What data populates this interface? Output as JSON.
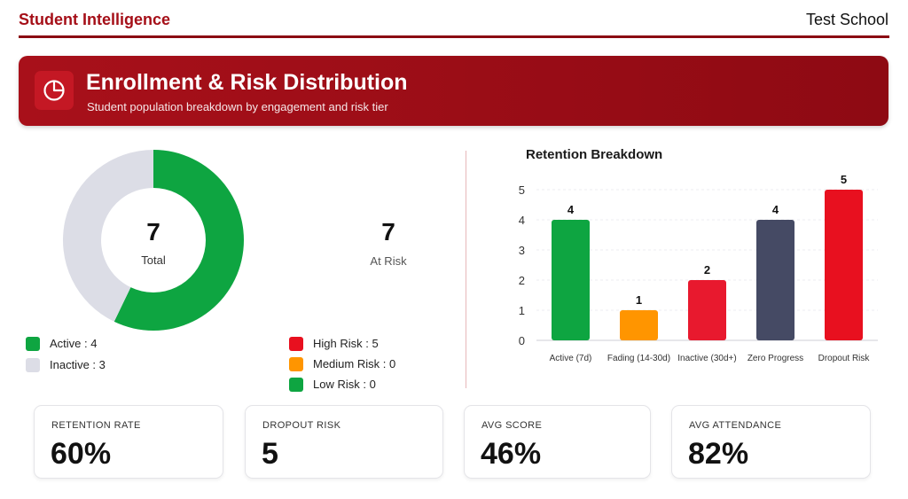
{
  "header": {
    "brand": "Student Intelligence",
    "school": "Test School"
  },
  "hero": {
    "icon": "pie-chart-icon",
    "title": "Enrollment & Risk Distribution",
    "subtitle": "Student population breakdown by engagement and risk tier"
  },
  "donut": {
    "total_value": "7",
    "total_label": "Total",
    "segments": [
      {
        "label": "Active",
        "value": 4,
        "color": "#0ea541"
      },
      {
        "label": "Inactive",
        "value": 3,
        "color": "#dcdde6"
      }
    ]
  },
  "at_risk": {
    "value": "7",
    "label": "At Risk"
  },
  "engagement_legend": [
    {
      "text": "Active : 4",
      "color": "#0ea541"
    },
    {
      "text": "Inactive : 3",
      "color": "#dcdde6"
    }
  ],
  "risk_legend": [
    {
      "text": "High Risk : 5",
      "color": "#e8101f"
    },
    {
      "text": "Medium Risk : 0",
      "color": "#ff9500"
    },
    {
      "text": "Low Risk : 0",
      "color": "#0ea541"
    }
  ],
  "chart_data": {
    "type": "bar",
    "title": "Retention Breakdown",
    "categories": [
      "Active (7d)",
      "Fading (14-30d)",
      "Inactive (30d+)",
      "Zero Progress",
      "Dropout Risk"
    ],
    "values": [
      4,
      1,
      2,
      4,
      5
    ],
    "colors": [
      "#0ea541",
      "#ff9500",
      "#e8192e",
      "#454a64",
      "#e8101f"
    ],
    "ylim": [
      0,
      5
    ],
    "yticks": [
      0,
      1,
      2,
      3,
      4,
      5
    ],
    "grid": true
  },
  "kpis": [
    {
      "label": "RETENTION RATE",
      "value": "60%"
    },
    {
      "label": "DROPOUT RISK",
      "value": "5"
    },
    {
      "label": "AVG SCORE",
      "value": "46%"
    },
    {
      "label": "AVG ATTENDANCE",
      "value": "82%"
    }
  ]
}
